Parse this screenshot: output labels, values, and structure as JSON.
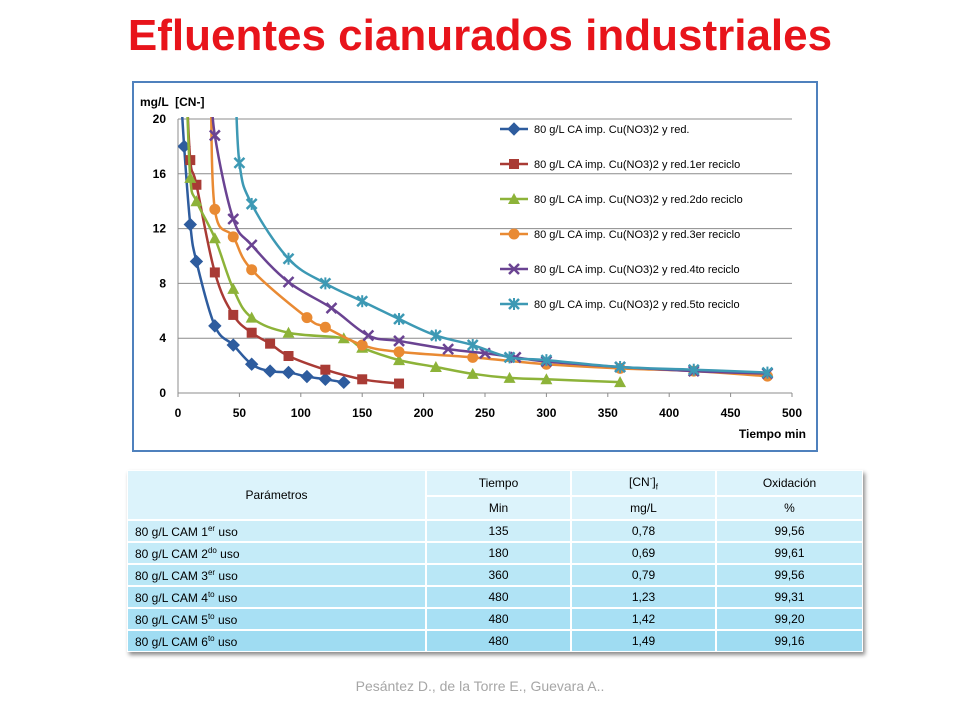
{
  "title": "Efluentes cianurados industriales",
  "chart_data": {
    "type": "line",
    "ylabel": "mg/L  [CN-]",
    "xlabel": "Tiempo min",
    "xlim": [
      0,
      500
    ],
    "ylim": [
      0,
      20
    ],
    "xticks": [
      "0",
      "50",
      "100",
      "150",
      "200",
      "250",
      "300",
      "350",
      "400",
      "450",
      "500"
    ],
    "yticks": [
      "0",
      "4",
      "8",
      "12",
      "16",
      "20"
    ],
    "legend_position": "top-right",
    "grid": "horizontal",
    "series": [
      {
        "name": "80 g/L CA imp. Cu(NO3)2 y red.",
        "color": "#2e5c9e",
        "marker": "diamond",
        "x": [
          5,
          10,
          15,
          30,
          45,
          60,
          75,
          90,
          105,
          120,
          135
        ],
        "y": [
          18.0,
          12.3,
          9.6,
          4.9,
          3.5,
          2.1,
          1.6,
          1.5,
          1.2,
          1.0,
          0.78
        ]
      },
      {
        "name": "80 g/L CA imp. Cu(NO3)2 y red.1er reciclo",
        "color": "#a93b35",
        "marker": "square",
        "x": [
          10,
          15,
          30,
          45,
          60,
          75,
          90,
          120,
          150,
          180
        ],
        "y": [
          17.0,
          15.2,
          8.8,
          5.7,
          4.4,
          3.6,
          2.7,
          1.7,
          1.0,
          0.69
        ]
      },
      {
        "name": "80 g/L CA imp. Cu(NO3)2 y red.2do reciclo",
        "color": "#8db339",
        "marker": "triangle",
        "x": [
          10,
          15,
          30,
          45,
          60,
          90,
          135,
          150,
          180,
          210,
          240,
          270,
          300,
          360
        ],
        "y": [
          15.7,
          14.0,
          11.3,
          7.6,
          5.5,
          4.4,
          4.0,
          3.3,
          2.4,
          1.9,
          1.4,
          1.1,
          1.0,
          0.79
        ]
      },
      {
        "name": "80 g/L CA imp. Cu(NO3)2 y red.3er reciclo",
        "color": "#e98a33",
        "marker": "circle",
        "x": [
          30,
          45,
          60,
          105,
          120,
          150,
          180,
          240,
          300,
          360,
          420,
          480
        ],
        "y": [
          13.4,
          11.4,
          9.0,
          5.5,
          4.8,
          3.5,
          3.0,
          2.6,
          2.1,
          1.8,
          1.6,
          1.23
        ]
      },
      {
        "name": "80 g/L CA imp. Cu(NO3)2 y red.4to reciclo",
        "color": "#6a4392",
        "marker": "x",
        "x": [
          30,
          45,
          60,
          90,
          125,
          155,
          180,
          220,
          250,
          275,
          300,
          360,
          420,
          480
        ],
        "y": [
          18.8,
          12.7,
          10.8,
          8.1,
          6.2,
          4.2,
          3.8,
          3.2,
          2.9,
          2.6,
          2.3,
          1.9,
          1.6,
          1.42
        ]
      },
      {
        "name": "80 g/L CA imp. Cu(NO3)2 y red.5to reciclo",
        "color": "#3d99b4",
        "marker": "asterisk",
        "x": [
          50,
          60,
          90,
          120,
          150,
          180,
          210,
          240,
          270,
          300,
          360,
          420,
          480
        ],
        "y": [
          16.8,
          13.8,
          9.8,
          8.0,
          6.7,
          5.4,
          4.2,
          3.5,
          2.6,
          2.4,
          1.9,
          1.7,
          1.49
        ]
      }
    ]
  },
  "table": {
    "header": {
      "parametros": "Parámetros",
      "tiempo": "Tiempo",
      "cn_base": "[CN",
      "cn_sup": "-",
      "cn_close": "]",
      "cn_sub": "f",
      "oxidacion": "Oxidación",
      "tiempo_unit": "Min",
      "cn_unit": "mg/L",
      "ox_unit": "%"
    },
    "rows": [
      {
        "label": "80 g/L CAM 1",
        "sup": "er",
        "suffix": " uso",
        "tiempo": "135",
        "cn": "0,78",
        "ox": "99,56"
      },
      {
        "label": "80 g/L CAM 2",
        "sup": "do",
        "suffix": " uso",
        "tiempo": "180",
        "cn": "0,69",
        "ox": "99,61"
      },
      {
        "label": "80 g/L CAM 3",
        "sup": "er",
        "suffix": " uso",
        "tiempo": "360",
        "cn": "0,79",
        "ox": "99,56"
      },
      {
        "label": "80 g/L CAM 4",
        "sup": "to",
        "suffix": " uso",
        "tiempo": "480",
        "cn": "1,23",
        "ox": "99,31"
      },
      {
        "label": "80 g/L CAM 5",
        "sup": "to",
        "suffix": " uso",
        "tiempo": "480",
        "cn": "1,42",
        "ox": "99,20"
      },
      {
        "label": "80 g/L CAM 6",
        "sup": "to",
        "suffix": " uso",
        "tiempo": "480",
        "cn": "1,49",
        "ox": "99,16"
      }
    ]
  },
  "footer": "Pesántez D., de la Torre E., Guevara A.."
}
